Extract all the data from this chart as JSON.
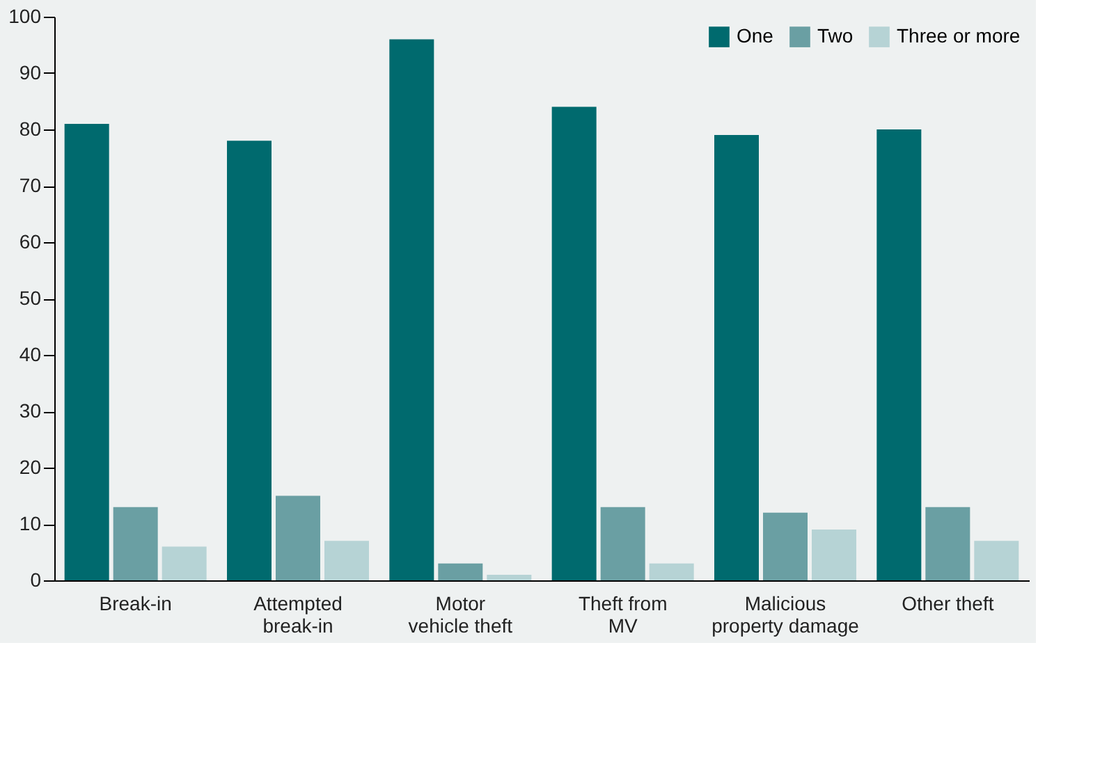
{
  "chart_data": {
    "type": "bar",
    "categories": [
      "Break-in",
      "Attempted\nbreak-in",
      "Motor\nvehicle theft",
      "Theft from\nMV",
      "Malicious\nproperty damage",
      "Other theft"
    ],
    "series": [
      {
        "name": "One",
        "color": "#006a6e",
        "values": [
          81,
          78,
          96,
          84,
          79,
          80
        ]
      },
      {
        "name": "Two",
        "color": "#6a9fa3",
        "values": [
          13,
          15,
          3,
          13,
          12,
          13
        ]
      },
      {
        "name": "Three or more",
        "color": "#b6d3d5",
        "values": [
          6,
          7,
          1,
          3,
          9,
          7
        ]
      }
    ],
    "ylim": [
      0,
      100
    ],
    "yticks": [
      0,
      10,
      20,
      30,
      40,
      50,
      60,
      70,
      80,
      90,
      100
    ],
    "grid": false,
    "legend": "top right"
  }
}
